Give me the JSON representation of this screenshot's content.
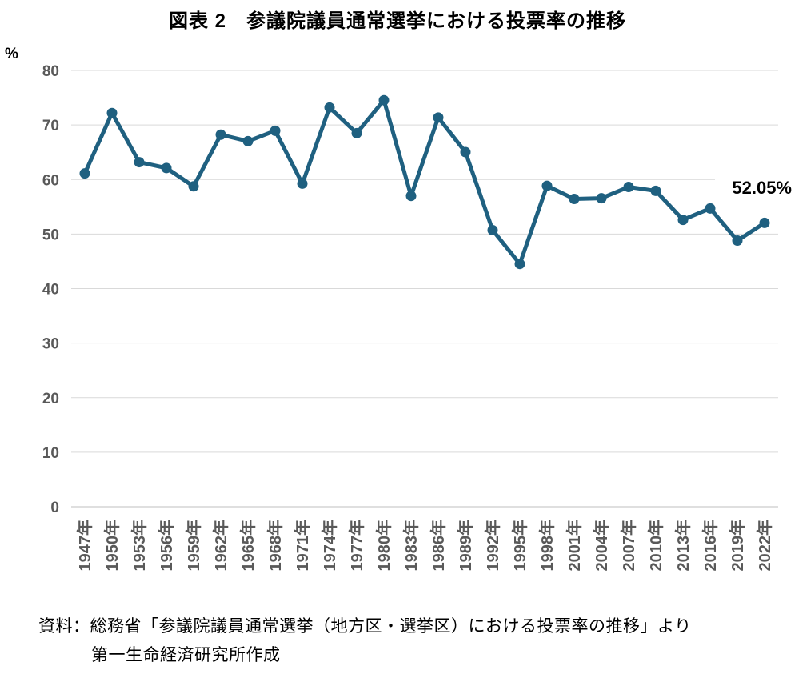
{
  "title": "図表 2　参議院議員通常選挙における投票率の推移",
  "y_axis_unit": "%",
  "annotation_label": "52.05%",
  "source": {
    "line1": "資料：総務省「参議院議員通常選挙（地方区・選挙区）における投票率の推移」より",
    "line2": "第一生命経済研究所作成"
  },
  "chart_data": {
    "type": "line",
    "title": "図表 2　参議院議員通常選挙における投票率の推移",
    "categories": [
      "1947年",
      "1950年",
      "1953年",
      "1956年",
      "1959年",
      "1962年",
      "1965年",
      "1968年",
      "1971年",
      "1974年",
      "1977年",
      "1980年",
      "1983年",
      "1986年",
      "1989年",
      "1992年",
      "1995年",
      "1998年",
      "2001年",
      "2004年",
      "2007年",
      "2010年",
      "2013年",
      "2016年",
      "2019年",
      "2022年"
    ],
    "values": [
      61.12,
      72.19,
      63.18,
      62.11,
      58.75,
      68.22,
      67.02,
      68.94,
      59.24,
      73.2,
      68.49,
      74.54,
      57.0,
      71.36,
      65.02,
      50.72,
      44.52,
      58.84,
      56.44,
      56.57,
      58.64,
      57.92,
      52.61,
      54.7,
      48.8,
      52.05
    ],
    "xlabel": "",
    "ylabel": "%",
    "ylim": [
      0,
      80
    ],
    "ytick_step": 10,
    "grid": true,
    "legend": "none",
    "annotation": {
      "text": "52.05%",
      "target_category": "2022年",
      "value": 52.05
    },
    "colors": {
      "line": "#1F6080",
      "marker": "#1F6080",
      "gridline": "#D9D9D9",
      "baseline": "#BFBFBF",
      "tick_label": "#595959",
      "text": "#000000"
    }
  }
}
